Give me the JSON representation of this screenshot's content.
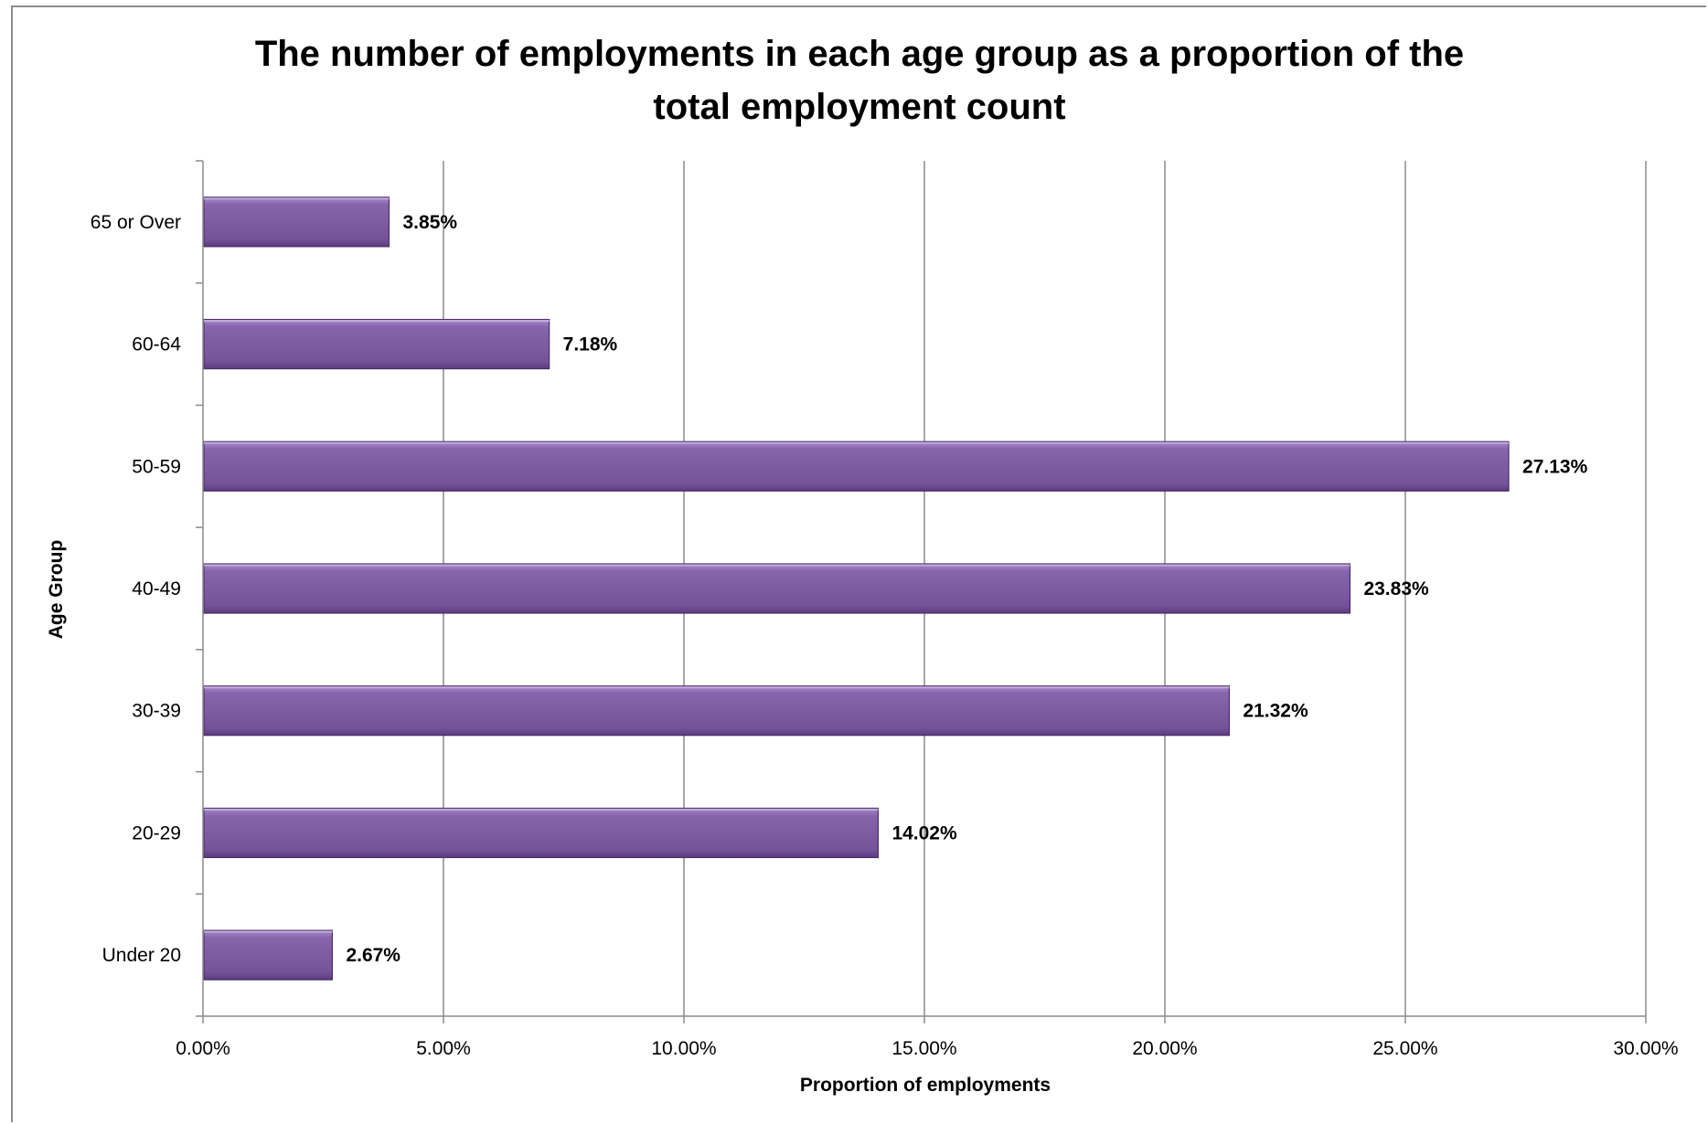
{
  "chart_data": {
    "type": "bar",
    "orientation": "horizontal",
    "title_lines": [
      "The number of employments in each age group as a proportion of the",
      "total employment count"
    ],
    "xlabel": "Proportion of employments",
    "ylabel": "Age Group",
    "categories": [
      "Under 20",
      "20-29",
      "30-39",
      "40-49",
      "50-59",
      "60-64",
      "65 or Over"
    ],
    "values": [
      2.67,
      14.02,
      21.32,
      23.83,
      27.13,
      7.18,
      3.85
    ],
    "data_labels": [
      "2.67%",
      "14.02%",
      "21.32%",
      "23.83%",
      "27.13%",
      "7.18%",
      "3.85%"
    ],
    "xlim": [
      0,
      30
    ],
    "x_ticks": [
      "0.00%",
      "5.00%",
      "10.00%",
      "15.00%",
      "20.00%",
      "25.00%",
      "30.00%"
    ],
    "grid": true,
    "legend": false,
    "bar_color": "#7b559e"
  }
}
